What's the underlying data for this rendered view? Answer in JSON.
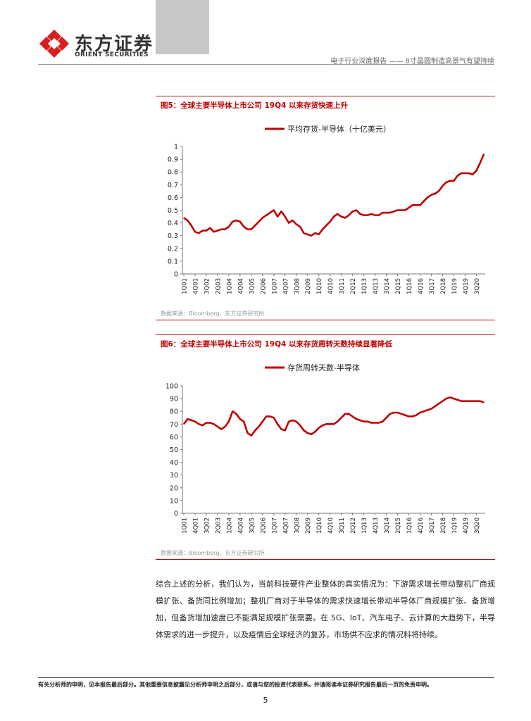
{
  "header": {
    "logo_cn": "东方证券",
    "logo_en": "ORIENT SECURITIES",
    "report_title": "电子行业深度报告 —— 8寸晶圆制造高景气有望持续"
  },
  "figures": [
    {
      "title": "图5：全球主要半导体上市公司 19Q4 以来存货快速上升",
      "source": "数据来源：Bloomberg，东方证券研究所"
    },
    {
      "title": "图6：全球主要半导体上市公司 19Q4 以来存货周转天数持续显著降低",
      "source": "数据来源：Bloomberg，东方证券研究所"
    }
  ],
  "chart_data": [
    {
      "type": "line",
      "title": "",
      "ylim": [
        0,
        1
      ],
      "yticks": [
        "0",
        "0.1",
        "0.2",
        "0.3",
        "0.4",
        "0.5",
        "0.6",
        "0.7",
        "0.8",
        "0.9",
        "1"
      ],
      "xticks": [
        "1Q01",
        "4Q01",
        "3Q02",
        "2Q03",
        "1Q04",
        "4Q04",
        "3Q05",
        "2Q06",
        "1Q07",
        "4Q07",
        "3Q08",
        "2Q09",
        "1Q10",
        "4Q10",
        "3Q11",
        "2Q12",
        "1Q13",
        "4Q13",
        "3Q14",
        "2Q15",
        "1Q16",
        "4Q16",
        "3Q17",
        "2Q18",
        "1Q19",
        "4Q19",
        "3Q20"
      ],
      "legend_position": "top",
      "color": "#c00000",
      "series": [
        {
          "name": "平均存货-半导体（十亿美元）",
          "values": [
            0.44,
            0.42,
            0.38,
            0.33,
            0.32,
            0.34,
            0.34,
            0.36,
            0.33,
            0.34,
            0.35,
            0.35,
            0.37,
            0.41,
            0.42,
            0.41,
            0.37,
            0.35,
            0.35,
            0.38,
            0.41,
            0.44,
            0.46,
            0.48,
            0.5,
            0.45,
            0.49,
            0.45,
            0.4,
            0.42,
            0.39,
            0.37,
            0.32,
            0.31,
            0.3,
            0.32,
            0.31,
            0.35,
            0.38,
            0.41,
            0.45,
            0.47,
            0.45,
            0.44,
            0.46,
            0.49,
            0.5,
            0.47,
            0.46,
            0.46,
            0.47,
            0.46,
            0.46,
            0.48,
            0.48,
            0.48,
            0.49,
            0.5,
            0.5,
            0.5,
            0.52,
            0.54,
            0.54,
            0.54,
            0.57,
            0.6,
            0.62,
            0.63,
            0.65,
            0.69,
            0.72,
            0.73,
            0.73,
            0.77,
            0.79,
            0.79,
            0.79,
            0.78,
            0.81,
            0.87,
            0.94
          ]
        }
      ]
    },
    {
      "type": "line",
      "title": "",
      "ylim": [
        0,
        100
      ],
      "yticks": [
        "0",
        "10",
        "20",
        "30",
        "40",
        "50",
        "60",
        "70",
        "80",
        "90",
        "100"
      ],
      "xticks": [
        "1Q01",
        "4Q01",
        "3Q02",
        "2Q03",
        "1Q04",
        "4Q04",
        "3Q05",
        "2Q06",
        "1Q07",
        "4Q07",
        "3Q08",
        "2Q09",
        "1Q10",
        "4Q10",
        "3Q11",
        "2Q12",
        "1Q13",
        "4Q13",
        "3Q14",
        "2Q15",
        "1Q16",
        "4Q16",
        "3Q17",
        "2Q18",
        "1Q19",
        "4Q19",
        "3Q20"
      ],
      "legend_position": "top",
      "color": "#c00000",
      "series": [
        {
          "name": "存货周转天数-半导体",
          "values": [
            70,
            74,
            73,
            72,
            70,
            69,
            71,
            71,
            70,
            68,
            66,
            68,
            72,
            80,
            78,
            74,
            72,
            63,
            61,
            65,
            68,
            72,
            76,
            76,
            75,
            70,
            66,
            65,
            72,
            73,
            72,
            69,
            65,
            63,
            62,
            64,
            67,
            69,
            70,
            70,
            70,
            72,
            75,
            78,
            78,
            76,
            74,
            73,
            72,
            72,
            71,
            71,
            71,
            72,
            75,
            78,
            79,
            79,
            78,
            77,
            76,
            76,
            77,
            79,
            80,
            81,
            82,
            84,
            86,
            88,
            90,
            91,
            90,
            89,
            88,
            88,
            88,
            88,
            88,
            88,
            87
          ]
        }
      ]
    }
  ],
  "paragraph": "综合上述的分析，我们认为，当前科技硬件产业整体的真实情况为：下游需求增长带动整机厂商规模扩张、备货同比例增加；整机厂商对于半导体的需求快速增长带动半导体厂商规模扩张、备货增加，但备货增加速度已不能满足规模扩张需要。在 5G、IoT、汽车电子、云计算的大趋势下，半导体需求的进一步提升，以及疫情后全球经济的复苏，市场供不应求的情况料将持续。",
  "footer": {
    "disclaimer": "有关分析师的申明，见本报告最后部分。其他重要信息披露见分析师申明之后部分，或请与您的投资代表联系。并请阅读本证券研究报告最后一页的免责申明。",
    "page_number": "5"
  }
}
